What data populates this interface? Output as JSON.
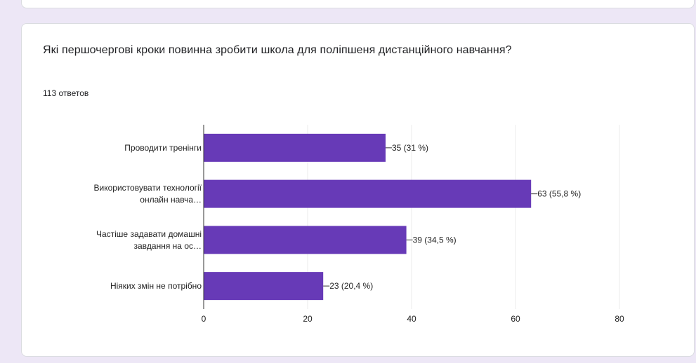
{
  "question": {
    "title": "Які першочергові кроки повинна зробити школа для поліпшеня дистанційного навчання?",
    "responses": "113 ответов"
  },
  "colors": {
    "bar": "#673ab7",
    "grid": "#ebebeb",
    "axis": "#333333",
    "text": "#222222",
    "background": "#ede7f6"
  },
  "chart_data": {
    "type": "bar",
    "orientation": "horizontal",
    "categories": [
      [
        "Проводити тренінги"
      ],
      [
        "Використовувати технології",
        "онлайн навча…"
      ],
      [
        "Частіше задавати домашні",
        "завдання на ос…"
      ],
      [
        "Ніяких змін не потрібно"
      ]
    ],
    "values": [
      35,
      63,
      39,
      23
    ],
    "data_labels": [
      "35 (31 %)",
      "63 (55,8 %)",
      "39 (34,5 %)",
      "23 (20,4 %)"
    ],
    "xlim": [
      0,
      80
    ],
    "xticks": [
      0,
      20,
      40,
      60,
      80
    ],
    "grid": true,
    "legend": "none"
  }
}
